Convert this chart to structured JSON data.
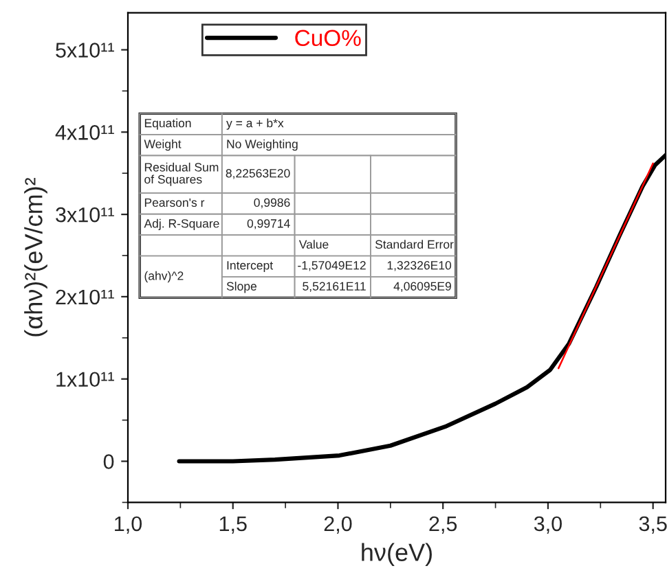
{
  "chart_data": {
    "type": "line",
    "xlabel": "hν(eV)",
    "ylabel": "(αhν)²(eV/cm)²",
    "series": [
      {
        "name": "CuO%",
        "color": "#000000",
        "x": [
          1.244,
          1.5,
          1.7,
          2.007,
          2.25,
          2.51,
          2.75,
          2.9,
          3.01,
          3.1,
          3.23,
          3.34,
          3.45,
          3.51,
          3.56
        ],
        "values": [
          0,
          0,
          2000000000.0,
          7000000000.0,
          19000000000.0,
          42000000000.0,
          70000000000.0,
          90000000000.0,
          111000000000.0,
          143000000000.0,
          212000000000.0,
          274000000000.0,
          334000000000.0,
          360000000000.0,
          372000000000.0
        ]
      },
      {
        "color": "#ff0000",
        "x": [
          3.05,
          3.5
        ],
        "values": [
          113000000000.0,
          362000000000.0
        ]
      }
    ],
    "xlim": [
      1.0,
      3.56
    ],
    "ylim": [
      -50000000000.0,
      545000000000.0
    ],
    "xticks": [
      {
        "value": 1.0,
        "label": "1,0"
      },
      {
        "value": 1.5,
        "label": "1,5"
      },
      {
        "value": 2.0,
        "label": "2,0"
      },
      {
        "value": 2.5,
        "label": "2,5"
      },
      {
        "value": 3.0,
        "label": "3,0"
      },
      {
        "value": 3.5,
        "label": "3,5"
      }
    ],
    "yticks": [
      0,
      {
        "value": 100000000000.0,
        "label": "1x10¹¹"
      },
      {
        "value": 200000000000.0,
        "label": "2x10¹¹"
      },
      {
        "value": 300000000000.0,
        "label": "3x10¹¹"
      },
      {
        "value": 400000000000.0,
        "label": "4x10¹¹"
      },
      {
        "value": 500000000000.0,
        "label": "5x10¹¹"
      }
    ],
    "legend": "top left",
    "grid": false,
    "annotations": [
      "Equation",
      "y = a + b*x",
      "Weight",
      "No Weighting",
      "Residual Sum\nof Squares",
      "8,22563E20",
      "Pearson's r",
      "0,9986",
      "Adj. R-Square",
      "0,99714",
      "Value",
      "Standard Error",
      "(ahv)^2",
      "Intercept",
      "-1,57049E12",
      "1,32326E10",
      "Slope",
      "5,52161E11",
      "4,06095E9"
    ]
  }
}
